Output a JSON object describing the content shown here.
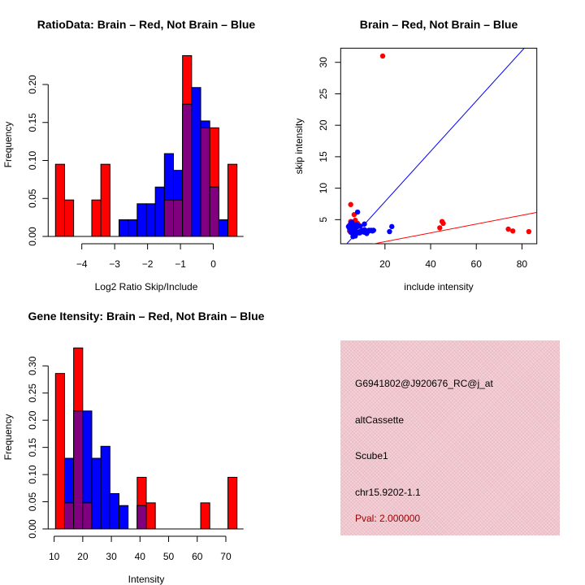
{
  "chart_data": [
    {
      "type": "bar",
      "subtype": "overlaid-histogram",
      "title": "RatioData: Brain – Red, Not Brain – Blue",
      "xlabel": "Log2 Ratio Skip/Include",
      "ylabel": "Frequency",
      "bin_start": -4.8,
      "bin_width": 0.276,
      "xlim": [
        -4.8,
        0.72
      ],
      "ylim": [
        0,
        0.24
      ],
      "xticks": [
        -4,
        -3,
        -2,
        -1,
        0
      ],
      "xtick_labels": [
        "−4",
        "−3",
        "−2",
        "−1",
        "0"
      ],
      "yticks": [
        0,
        0.05,
        0.1,
        0.15,
        0.2
      ],
      "ytick_labels": [
        "0.00",
        "0.05",
        "0.10",
        "0.15",
        "0.20"
      ],
      "series": [
        {
          "name": "Brain",
          "color": "#ff0000",
          "values": [
            0.095,
            0.048,
            0,
            0,
            0.048,
            0.095,
            0,
            0,
            0,
            0,
            0,
            0,
            0.048,
            0.048,
            0.238,
            0,
            0.143,
            0.143,
            0,
            0.095
          ]
        },
        {
          "name": "Not Brain",
          "color": "#0000ff",
          "values": [
            0,
            0,
            0,
            0,
            0,
            0,
            0,
            0.022,
            0.022,
            0.043,
            0.043,
            0.065,
            0.109,
            0.087,
            0.174,
            0.196,
            0.152,
            0.065,
            0.022,
            0
          ]
        }
      ],
      "overlap_color": "#800080"
    },
    {
      "type": "scatter",
      "title": "Brain – Red, Not Brain – Blue",
      "xlabel": "include intensity",
      "ylabel": "skip intensity",
      "xlim": [
        0.6,
        86.5
      ],
      "ylim": [
        1.17,
        32.25
      ],
      "xticks": [
        20,
        40,
        60,
        80
      ],
      "xtick_labels": [
        "20",
        "40",
        "60",
        "80"
      ],
      "yticks": [
        5,
        10,
        15,
        20,
        25,
        30
      ],
      "ytick_labels": [
        "5",
        "10",
        "15",
        "20",
        "25",
        "30"
      ],
      "series": [
        {
          "name": "Brain",
          "color": "#ff0000",
          "x": [
            19,
            5,
            6.5,
            5,
            7,
            8,
            4.5,
            44,
            45,
            45.5,
            74,
            76,
            83,
            6,
            6.5,
            5.5,
            7.5,
            4.8,
            6.2,
            5.2,
            7.8
          ],
          "y": [
            31,
            7.4,
            5.8,
            4.7,
            4.9,
            4.4,
            3.2,
            3.7,
            4.7,
            4.4,
            3.5,
            3.2,
            3.1,
            4,
            3.5,
            3.8,
            4.2,
            3.3,
            4.5,
            4.1,
            3.9
          ],
          "fit": {
            "slope": 0.07,
            "intercept": 0.1
          }
        },
        {
          "name": "Not Brain",
          "color": "#0000ff",
          "x": [
            8,
            22,
            23,
            11,
            4,
            4.5,
            5,
            5.5,
            6,
            6.5,
            7,
            7.5,
            8,
            8.5,
            9,
            10,
            11,
            12,
            13,
            14,
            15,
            5,
            6,
            7,
            8,
            9,
            10,
            12,
            5.5,
            6.5,
            7.5,
            4.5,
            5,
            6,
            7,
            8,
            9,
            11,
            13,
            14.5,
            6,
            6.5,
            7,
            5,
            5.5,
            6
          ],
          "y": [
            6.2,
            3.1,
            3.9,
            4.3,
            3.9,
            3.6,
            3.2,
            4.6,
            4.1,
            3.8,
            3.5,
            4.2,
            3.0,
            2.9,
            3.1,
            3.3,
            3.4,
            2.8,
            3.2,
            3.3,
            3.3,
            3.0,
            2.6,
            2.4,
            3.9,
            4.0,
            3.1,
            3.2,
            4.3,
            3.3,
            2.9,
            4.1,
            3.5,
            3.0,
            3.7,
            4.1,
            2.9,
            3.0,
            3.3,
            3.2,
            2.3,
            2.8,
            3.6,
            4.4,
            3.4,
            4.0
          ],
          "fit": {
            "slope": 0.4,
            "intercept": -0.14
          }
        }
      ]
    },
    {
      "type": "bar",
      "subtype": "overlaid-histogram",
      "title": "Gene Itensity: Brain – Red, Not Brain – Blue",
      "xlabel": "Intensity",
      "ylabel": "Frequency",
      "bin_start": 10.47,
      "bin_width": 3.17,
      "xlim": [
        10.47,
        73.9
      ],
      "ylim": [
        0,
        0.333
      ],
      "xticks": [
        10,
        20,
        30,
        40,
        50,
        60,
        70
      ],
      "xtick_labels": [
        "10",
        "20",
        "30",
        "40",
        "50",
        "60",
        "70"
      ],
      "yticks": [
        0,
        0.05,
        0.1,
        0.15,
        0.2,
        0.25,
        0.3
      ],
      "ytick_labels": [
        "0.00",
        "0.05",
        "0.10",
        "0.15",
        "0.20",
        "0.25",
        "0.30"
      ],
      "series": [
        {
          "name": "Brain",
          "color": "#ff0000",
          "values": [
            0.286,
            0.048,
            0.333,
            0.048,
            0,
            0,
            0,
            0,
            0,
            0.095,
            0.048,
            0,
            0,
            0,
            0,
            0,
            0.048,
            0,
            0,
            0.095
          ]
        },
        {
          "name": "Not Brain",
          "color": "#0000ff",
          "values": [
            0,
            0.13,
            0.217,
            0.217,
            0.13,
            0.152,
            0.065,
            0.043,
            0,
            0.043,
            0,
            0,
            0,
            0,
            0,
            0,
            0,
            0,
            0,
            0
          ]
        }
      ],
      "overlap_color": "#800080"
    }
  ],
  "info_panel": {
    "probe_id": "G6941802@J920676_RC@j_at",
    "event_type": "altCassette",
    "gene": "Scube1",
    "location": "chr15.9202-1.1",
    "pval": "Pval: 2.000000",
    "pval_color": "#990000",
    "background_color": "#f1c6ce"
  }
}
